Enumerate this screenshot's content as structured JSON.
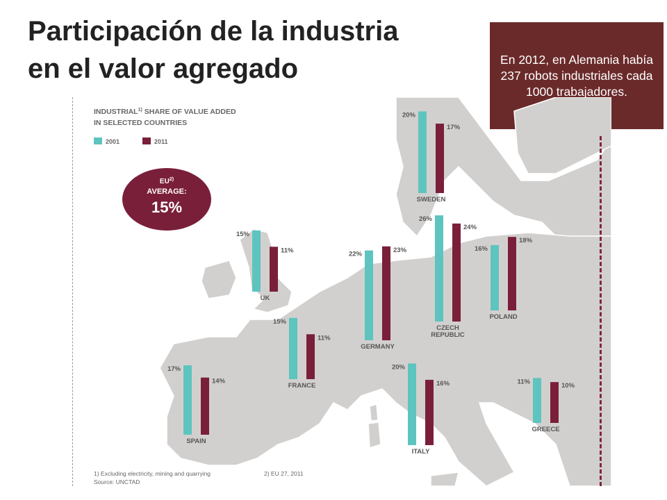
{
  "slide": {
    "title_line1": "Participación de la industria",
    "title_line2": "en el valor agregado",
    "info": "En 2012, en Alemania había 237 robots industriales cada 1000 trabajadores."
  },
  "colors": {
    "series_2001": "#5ec4bf",
    "series_2011": "#7a1f3a",
    "map_land": "#d2d0ce",
    "map_sea": "#ffffff",
    "info_box": "#6b2a2a"
  },
  "chart_data": {
    "type": "bar",
    "title_line1": "INDUSTRIAL",
    "title_sup": "1)",
    "title_rest": " SHARE OF VALUE ADDED",
    "title_line2": "IN SELECTED COUNTRIES",
    "legend": [
      {
        "label": "2001",
        "color": "#5ec4bf"
      },
      {
        "label": "2011",
        "color": "#7a1f3a"
      }
    ],
    "series": [
      {
        "name": "2001",
        "values": [
          20,
          15,
          22,
          26,
          16,
          15,
          17,
          20,
          11
        ]
      },
      {
        "name": "2011",
        "values": [
          17,
          11,
          23,
          24,
          18,
          11,
          14,
          16,
          10
        ]
      }
    ],
    "categories": [
      "SWEDEN",
      "UK",
      "GERMANY",
      "CZECH REPUBLIC",
      "POLAND",
      "FRANCE",
      "SPAIN",
      "ITALY",
      "GREECE"
    ],
    "countries": [
      {
        "name": "SWEDEN",
        "v2001": 20,
        "v2011": 17,
        "l2001": "20%",
        "l2011": "17%"
      },
      {
        "name": "UK",
        "v2001": 15,
        "v2011": 11,
        "l2001": "15%",
        "l2011": "11%"
      },
      {
        "name": "GERMANY",
        "v2001": 22,
        "v2011": 23,
        "l2001": "22%",
        "l2011": "23%"
      },
      {
        "name": "CZECH REPUBLIC",
        "name1": "CZECH",
        "name2": "REPUBLIC",
        "v2001": 26,
        "v2011": 24,
        "l2001": "26%",
        "l2011": "24%"
      },
      {
        "name": "POLAND",
        "v2001": 16,
        "v2011": 18,
        "l2001": "16%",
        "l2011": "18%"
      },
      {
        "name": "FRANCE",
        "v2001": 15,
        "v2011": 11,
        "l2001": "15%",
        "l2011": "11%"
      },
      {
        "name": "SPAIN",
        "v2001": 17,
        "v2011": 14,
        "l2001": "17%",
        "l2011": "14%"
      },
      {
        "name": "ITALY",
        "v2001": 20,
        "v2011": 16,
        "l2001": "20%",
        "l2011": "16%"
      },
      {
        "name": "GREECE",
        "v2001": 11,
        "v2011": 10,
        "l2001": "11%",
        "l2011": "10%"
      }
    ],
    "eu_average": {
      "line1": "EU",
      "sup": "2)",
      "line2": "AVERAGE:",
      "value": 15,
      "value_label": "15%"
    },
    "footnote1": "1) Excluding electricity, mining and quarrying",
    "footnote2": "2) EU 27, 2011",
    "source": "Source: UNCTAD"
  }
}
